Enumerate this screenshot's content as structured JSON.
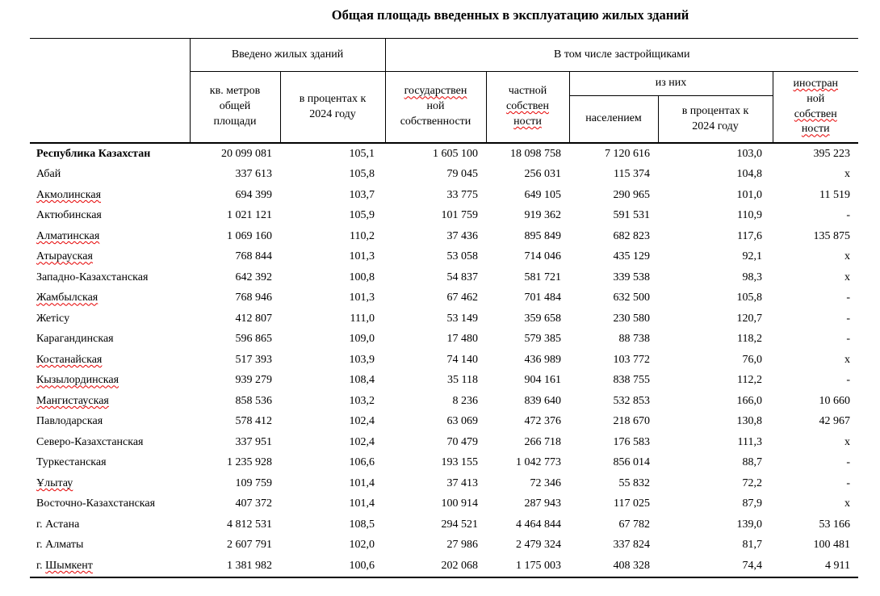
{
  "page_title": "Общая площадь введенных в эксплуатацию жилых зданий",
  "colors": {
    "text": "#000000",
    "border": "#000000",
    "spellcheck_underline": "#e60000"
  },
  "table": {
    "group_headers": {
      "introduced": "Введено жилых зданий",
      "by_developers": "В том числе застройщиками",
      "of_them": "из них"
    },
    "column_headers": {
      "sq_meters": [
        {
          "t": "кв. метров"
        },
        {
          "t": "общей"
        },
        {
          "t": "площади"
        }
      ],
      "percent_2024": [
        {
          "t": "в процентах к"
        },
        {
          "t": "2024 году"
        }
      ],
      "state_ownership": [
        {
          "t": "государствен",
          "w": true
        },
        {
          "t": "ной"
        },
        {
          "t": "собственности"
        }
      ],
      "private_ownership": [
        {
          "t": "частной"
        },
        {
          "t": "собствен",
          "w": true
        },
        {
          "t": "ности",
          "w": true
        }
      ],
      "by_population": [
        {
          "t": "населением"
        }
      ],
      "percent_2024_population": [
        {
          "t": "в процентах к"
        },
        {
          "t": "2024 году"
        }
      ],
      "foreign_ownership": [
        {
          "t": "иностран",
          "w": true
        },
        {
          "t": "ной"
        },
        {
          "t": "собствен",
          "w": true
        },
        {
          "t": "ности",
          "w": true
        }
      ]
    },
    "rows": [
      {
        "region": "Республика Казахстан",
        "bold": true,
        "wavy": null,
        "values": [
          "20 099 081",
          "105,1",
          "1 605 100",
          "18 098 758",
          "7 120 616",
          "103,0",
          "395 223"
        ]
      },
      {
        "region": "Абай",
        "bold": false,
        "wavy": null,
        "values": [
          "337 613",
          "105,8",
          "79 045",
          "256 031",
          "115 374",
          "104,8",
          "x"
        ]
      },
      {
        "region": "Акмолинская",
        "bold": false,
        "wavy": "Акмолинская",
        "values": [
          "694 399",
          "103,7",
          "33 775",
          "649 105",
          "290 965",
          "101,0",
          "11 519"
        ]
      },
      {
        "region": "Актюбинская",
        "bold": false,
        "wavy": null,
        "values": [
          "1 021 121",
          "105,9",
          "101 759",
          "919 362",
          "591 531",
          "110,9",
          "-"
        ]
      },
      {
        "region": "Алматинская",
        "bold": false,
        "wavy": "Алматинская",
        "values": [
          "1 069 160",
          "110,2",
          "37 436",
          "895 849",
          "682 823",
          "117,6",
          "135 875"
        ]
      },
      {
        "region": "Атырауская",
        "bold": false,
        "wavy": "Атырауская",
        "values": [
          "768 844",
          "101,3",
          "53 058",
          "714 046",
          "435 129",
          "92,1",
          "x"
        ]
      },
      {
        "region": "Западно-Казахстанская",
        "bold": false,
        "wavy": null,
        "values": [
          "642 392",
          "100,8",
          "54 837",
          "581 721",
          "339 538",
          "98,3",
          "x"
        ]
      },
      {
        "region": "Жамбылская",
        "bold": false,
        "wavy": "Жамбылская",
        "values": [
          "768 946",
          "101,3",
          "67 462",
          "701 484",
          "632 500",
          "105,8",
          "-"
        ]
      },
      {
        "region": "Жетісу",
        "bold": false,
        "wavy": null,
        "values": [
          "412 807",
          "111,0",
          "53 149",
          "359 658",
          "230 580",
          "120,7",
          "-"
        ]
      },
      {
        "region": "Карагандинская",
        "bold": false,
        "wavy": null,
        "values": [
          "596 865",
          "109,0",
          "17 480",
          "579 385",
          "88 738",
          "118,2",
          "-"
        ]
      },
      {
        "region": "Костанайская",
        "bold": false,
        "wavy": "Костанайская",
        "values": [
          "517 393",
          "103,9",
          "74 140",
          "436 989",
          "103 772",
          "76,0",
          "x"
        ]
      },
      {
        "region": "Кызылординская",
        "bold": false,
        "wavy": "Кызылординская",
        "values": [
          "939 279",
          "108,4",
          "35 118",
          "904 161",
          "838 755",
          "112,2",
          "-"
        ]
      },
      {
        "region": "Мангистауская",
        "bold": false,
        "wavy": "Мангистауская",
        "values": [
          "858 536",
          "103,2",
          "8 236",
          "839 640",
          "532 853",
          "166,0",
          "10 660"
        ]
      },
      {
        "region": "Павлодарская",
        "bold": false,
        "wavy": null,
        "values": [
          "578 412",
          "102,4",
          "63 069",
          "472 376",
          "218 670",
          "130,8",
          "42 967"
        ]
      },
      {
        "region": "Северо-Казахстанская",
        "bold": false,
        "wavy": null,
        "values": [
          "337 951",
          "102,4",
          "70 479",
          "266 718",
          "176 583",
          "111,3",
          "x"
        ]
      },
      {
        "region": "Туркестанская",
        "bold": false,
        "wavy": null,
        "values": [
          "1 235 928",
          "106,6",
          "193 155",
          "1 042 773",
          "856 014",
          "88,7",
          "-"
        ]
      },
      {
        "region": "Ұлытау",
        "bold": false,
        "wavy": "Ұлытау",
        "values": [
          "109 759",
          "101,4",
          "37 413",
          "72 346",
          "55 832",
          "72,2",
          "-"
        ]
      },
      {
        "region": "Восточно-Казахстанская",
        "bold": false,
        "wavy": null,
        "values": [
          "407 372",
          "101,4",
          "100 914",
          "287 943",
          "117 025",
          "87,9",
          "x"
        ]
      },
      {
        "region": "г. Астана",
        "bold": false,
        "wavy": null,
        "values": [
          "4 812 531",
          "108,5",
          "294 521",
          "4 464 844",
          "67 782",
          "139,0",
          "53 166"
        ]
      },
      {
        "region": "г. Алматы",
        "bold": false,
        "wavy": null,
        "values": [
          "2 607 791",
          "102,0",
          "27 986",
          "2 479 324",
          "337 824",
          "81,7",
          "100 481"
        ]
      },
      {
        "region": "г. Шымкент",
        "bold": false,
        "wavy": "Шымкент",
        "values": [
          "1 381 982",
          "100,6",
          "202 068",
          "1 175 003",
          "408 328",
          "74,4",
          "4 911"
        ]
      }
    ]
  }
}
